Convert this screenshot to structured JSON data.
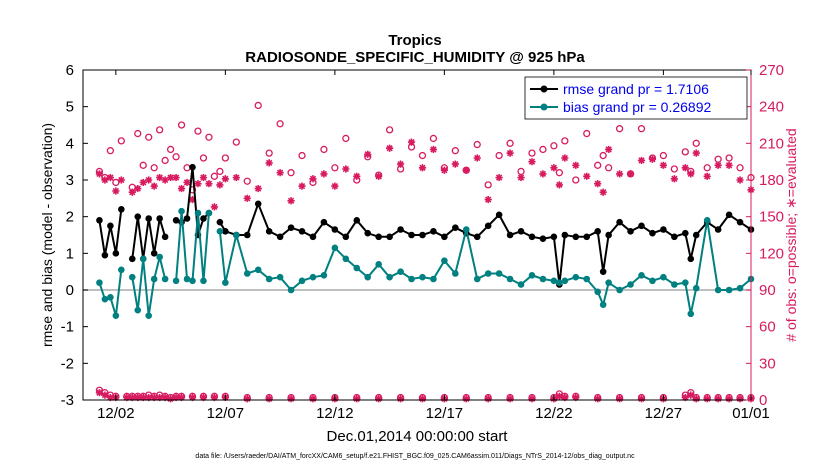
{
  "chart_data": {
    "type": "line",
    "title": "Tropics",
    "subtitle": "RADIOSONDE_SPECIFIC_HUMIDITY @ 925 hPa",
    "xlabel": "Dec.01,2014 00:00:00 start",
    "ylabel_left": "rmse and bias (model - observation)",
    "ylabel_right": "# of obs: o=possible; ∗=evaluated",
    "footnote": "data file: /Users/raeder/DAI/ATM_forcXX/CAM6_setup/f.e21.FHIST_BGC.f09_025.CAM6assim.011/Diags_NTrS_2014-12/obs_diag_output.nc",
    "xlim": [
      0.5,
      31.0
    ],
    "ylim_left": [
      -3,
      6
    ],
    "ylim_right": [
      0,
      270
    ],
    "left_ticks": [
      -3,
      -2,
      -1,
      0,
      1,
      2,
      3,
      4,
      5,
      6
    ],
    "right_ticks": [
      0,
      30,
      60,
      90,
      120,
      150,
      180,
      210,
      240,
      270
    ],
    "x_ticks": [
      {
        "x": 2,
        "label": "12/02"
      },
      {
        "x": 7,
        "label": "12/07"
      },
      {
        "x": 12,
        "label": "12/12"
      },
      {
        "x": 17,
        "label": "12/17"
      },
      {
        "x": 22,
        "label": "12/22"
      },
      {
        "x": 27,
        "label": "12/27"
      },
      {
        "x": 31,
        "label": "01/01"
      }
    ],
    "legend": [
      {
        "name": "rmse grand pr = 1.7106",
        "color": "#000000"
      },
      {
        "name": "bias grand pr = 0.26892",
        "color": "#008080"
      }
    ],
    "colors": {
      "rmse": "#000000",
      "bias": "#008080",
      "obs": "#d81b60",
      "zero_line": "#aaaaaa",
      "right_axis": "#d81b60"
    },
    "x": [
      1.25,
      1.5,
      1.75,
      2,
      2.25,
      2.5,
      2.75,
      3,
      3.25,
      3.5,
      3.75,
      4,
      4.25,
      4.5,
      4.75,
      5,
      5.25,
      5.5,
      5.75,
      6,
      6.25,
      6.5,
      6.75,
      7,
      7.5,
      8,
      8.5,
      9,
      9.5,
      10,
      10.5,
      11,
      11.5,
      12,
      12.5,
      13,
      13.5,
      14,
      14.5,
      15,
      15.5,
      16,
      16.5,
      17,
      17.5,
      18,
      18.5,
      19,
      19.5,
      20,
      20.5,
      21,
      21.5,
      22,
      22.25,
      22.5,
      23,
      23.5,
      24,
      24.25,
      24.5,
      25,
      25.5,
      26,
      26.5,
      27,
      27.5,
      28,
      28.25,
      28.5,
      29,
      29.5,
      30,
      30.5,
      31
    ],
    "series": [
      {
        "name": "rmse",
        "values": [
          1.9,
          0.95,
          1.75,
          1.0,
          2.2,
          null,
          0.85,
          2.0,
          0.85,
          1.95,
          1.0,
          1.95,
          1.45,
          null,
          1.9,
          1.85,
          1.95,
          3.35,
          1.5,
          1.95,
          2.1,
          null,
          1.85,
          1.6,
          1.5,
          1.5,
          2.35,
          1.6,
          1.45,
          1.7,
          1.6,
          1.45,
          1.85,
          1.65,
          1.45,
          1.9,
          1.55,
          1.45,
          1.45,
          1.65,
          1.5,
          1.5,
          1.6,
          1.45,
          1.7,
          1.55,
          1.45,
          1.75,
          2.05,
          1.5,
          1.6,
          1.45,
          1.4,
          1.45,
          0.15,
          1.5,
          1.45,
          1.45,
          1.6,
          0.5,
          1.5,
          1.85,
          1.6,
          1.75,
          1.55,
          1.65,
          1.45,
          1.55,
          0.85,
          1.5,
          1.85,
          1.65,
          2.05,
          1.85,
          1.65
        ]
      },
      {
        "name": "bias",
        "values": [
          0.2,
          -0.25,
          -0.2,
          -0.7,
          0.55,
          null,
          0.35,
          -0.55,
          0.85,
          -0.7,
          0.3,
          0.9,
          0.3,
          null,
          0.25,
          2.15,
          0.3,
          0.25,
          2.1,
          0.25,
          2.1,
          null,
          1.6,
          0.2,
          1.5,
          0.45,
          0.55,
          0.3,
          0.35,
          0.0,
          0.25,
          0.35,
          0.4,
          1.15,
          0.85,
          0.6,
          0.35,
          0.7,
          0.35,
          0.5,
          0.3,
          0.35,
          0.3,
          0.8,
          0.45,
          1.65,
          0.3,
          0.45,
          0.45,
          0.3,
          0.15,
          0.4,
          0.3,
          0.25,
          0.2,
          0.25,
          0.35,
          0.3,
          -0.05,
          -0.4,
          0.2,
          0.0,
          0.15,
          0.4,
          0.25,
          0.35,
          0.15,
          0.2,
          -0.65,
          0.05,
          1.9,
          0.0,
          0.0,
          0.05,
          0.3
        ]
      },
      {
        "name": "obs_possible",
        "values": [
          187,
          182,
          204,
          178,
          212,
          null,
          174,
          218,
          192,
          215,
          190,
          221,
          196,
          205,
          199,
          225,
          190,
          172,
          220,
          198,
          215,
          183,
          187,
          198,
          211,
          179,
          241,
          202,
          226,
          186,
          200,
          178,
          205,
          190,
          214,
          180,
          199,
          184,
          221,
          189,
          207,
          200,
          214,
          190,
          204,
          188,
          209,
          176,
          200,
          210,
          187,
          202,
          205,
          208,
          186,
          212,
          180,
          218,
          192,
          200,
          190,
          222,
          185,
          222,
          198,
          200,
          189,
          203,
          187,
          210,
          190,
          197,
          198,
          190,
          182
        ]
      },
      {
        "name": "obs_evaluated",
        "values": [
          185,
          180,
          182,
          171,
          180,
          null,
          170,
          173,
          178,
          180,
          175,
          182,
          180,
          182,
          182,
          173,
          178,
          164,
          177,
          182,
          177,
          158,
          176,
          181,
          182,
          165,
          173,
          194,
          186,
          163,
          175,
          181,
          185,
          175,
          189,
          183,
          201,
          183,
          206,
          193,
          211,
          190,
          205,
          188,
          193,
          188,
          198,
          164,
          182,
          202,
          182,
          195,
          185,
          190,
          176,
          198,
          192,
          183,
          177,
          170,
          205,
          185,
          185,
          196,
          197,
          192,
          181,
          190,
          185,
          202,
          183,
          192,
          192,
          180,
          172
        ]
      }
    ],
    "obs_low_x": [
      1.25,
      1.5,
      1.75,
      2,
      2.5,
      2.75,
      3,
      3.25,
      3.5,
      3.75,
      4,
      4.25,
      4.5,
      4.75,
      5,
      5.5,
      6,
      6.5,
      7,
      8,
      9,
      10,
      11,
      12,
      13,
      14,
      15,
      16,
      17,
      18,
      19,
      20,
      21,
      22,
      22.25,
      22.5,
      23,
      24,
      25,
      26,
      27,
      28,
      28.25,
      28.5,
      29,
      29.5,
      30,
      30.5,
      31
    ],
    "obs_low_possible": [
      8,
      6,
      4,
      3,
      3,
      3,
      3,
      3,
      4,
      3,
      4,
      3,
      2,
      3,
      3,
      3,
      3,
      3,
      3,
      2,
      2,
      2,
      2,
      2,
      2,
      2,
      2,
      2,
      2,
      2,
      2,
      2,
      2,
      2,
      5,
      3,
      3,
      2,
      2,
      2,
      2,
      4,
      6,
      2,
      2,
      2,
      2,
      2,
      2
    ],
    "obs_low_evaluated": [
      6,
      4,
      2,
      2,
      2,
      2,
      2,
      2,
      2,
      2,
      2,
      2,
      1,
      2,
      2,
      2,
      2,
      2,
      2,
      1,
      1,
      1,
      1,
      1,
      1,
      1,
      1,
      1,
      1,
      1,
      1,
      1,
      1,
      1,
      3,
      2,
      2,
      1,
      1,
      1,
      1,
      2,
      4,
      1,
      1,
      1,
      1,
      1,
      1
    ]
  }
}
